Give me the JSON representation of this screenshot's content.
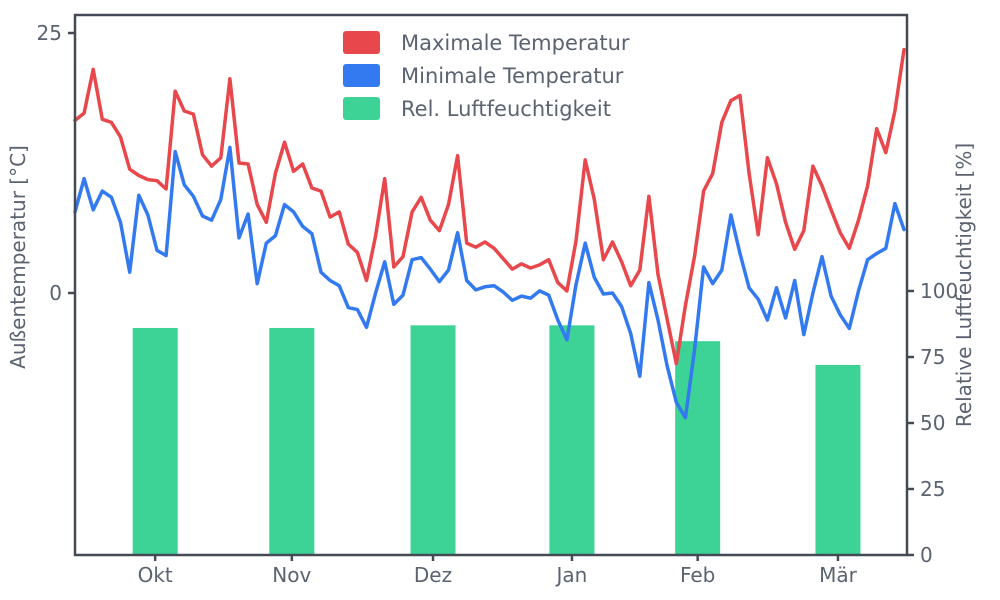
{
  "chart_data": {
    "type": "mixed",
    "title": "",
    "x_axis": {
      "unit": "day",
      "span_days": 182,
      "month_ticks": [
        {
          "label": "Okt",
          "day": 17.6
        },
        {
          "label": "Nov",
          "day": 47.6
        },
        {
          "label": "Dez",
          "day": 78.6
        },
        {
          "label": "Jan",
          "day": 109.1
        },
        {
          "label": "Feb",
          "day": 136.7
        },
        {
          "label": "Mär",
          "day": 167.5
        }
      ]
    },
    "y_left": {
      "label": "Außentemperatur [°C]",
      "ticks": [
        25,
        0
      ],
      "min": -25.2,
      "max": 26.7
    },
    "y_right": {
      "label": "Relative Luftfeuchtigkeit [%]",
      "ticks": [
        100,
        75,
        50,
        25,
        0
      ],
      "min": 0,
      "max": 204
    },
    "legend": [
      {
        "label": "Maximale Temperatur",
        "color": "#e8474b"
      },
      {
        "label": "Minimale Temperatur",
        "color": "#337af0"
      },
      {
        "label": "Rel. Luftfeuchtigkeit",
        "color": "#3dd396"
      }
    ],
    "series": [
      {
        "name": "Maximale Temperatur",
        "type": "line",
        "axis": "left",
        "color": "#e8474b",
        "day_start": 0,
        "day_step": 2,
        "values": [
          16.6,
          17.3,
          21.5,
          16.7,
          16.4,
          15.0,
          11.9,
          11.3,
          10.9,
          10.8,
          10.0,
          19.4,
          17.5,
          17.2,
          13.3,
          12.2,
          13.0,
          20.6,
          12.5,
          12.4,
          8.5,
          6.8,
          11.5,
          14.5,
          11.7,
          12.4,
          10.1,
          9.8,
          7.3,
          7.8,
          4.7,
          3.9,
          1.2,
          5.5,
          11.0,
          2.5,
          3.5,
          7.8,
          9.2,
          7.0,
          6.0,
          8.5,
          13.2,
          4.8,
          4.4,
          4.9,
          4.3,
          3.3,
          2.3,
          2.8,
          2.4,
          2.7,
          3.2,
          1.0,
          0.2,
          5.0,
          12.8,
          9.0,
          3.2,
          4.9,
          3.0,
          0.7,
          2.2,
          9.3,
          1.8,
          -2.5,
          -6.8,
          -1.2,
          3.5,
          9.8,
          11.5,
          16.4,
          18.5,
          19.0,
          11.5,
          5.6,
          13.0,
          10.5,
          6.8,
          4.2,
          6.0,
          12.2,
          10.3,
          8.0,
          5.8,
          4.3,
          7.0,
          10.3,
          15.8,
          13.5,
          17.5,
          23.4
        ]
      },
      {
        "name": "Minimale Temperatur",
        "type": "line",
        "axis": "left",
        "color": "#337af0",
        "day_start": 0,
        "day_step": 2,
        "values": [
          7.8,
          11.0,
          8.0,
          9.8,
          9.2,
          6.8,
          2.0,
          9.4,
          7.5,
          4.1,
          3.6,
          13.6,
          10.4,
          9.3,
          7.4,
          7.0,
          9.0,
          14.0,
          5.3,
          7.6,
          0.9,
          4.8,
          5.5,
          8.5,
          7.8,
          6.4,
          5.7,
          2.0,
          1.2,
          0.7,
          -1.4,
          -1.6,
          -3.3,
          0.0,
          3.0,
          -1.1,
          -0.2,
          3.2,
          3.4,
          2.3,
          1.1,
          2.2,
          5.8,
          1.2,
          0.3,
          0.6,
          0.7,
          0.1,
          -0.7,
          -0.3,
          -0.5,
          0.2,
          -0.2,
          -2.6,
          -4.5,
          0.8,
          4.8,
          1.5,
          -0.1,
          0.0,
          -1.3,
          -3.9,
          -8.0,
          1.0,
          -2.6,
          -7.0,
          -10.5,
          -12.0,
          -5.5,
          2.5,
          0.9,
          2.2,
          7.5,
          3.8,
          0.5,
          -0.6,
          -2.6,
          0.5,
          -2.4,
          1.2,
          -4.0,
          0.0,
          3.5,
          -0.3,
          -2.1,
          -3.4,
          0.2,
          3.2,
          3.8,
          4.3,
          8.6,
          6.1
        ]
      },
      {
        "name": "Rel. Luftfeuchtigkeit",
        "type": "bar",
        "axis": "right",
        "color": "#3dd396",
        "categories": [
          "Okt",
          "Nov",
          "Dez",
          "Jan",
          "Feb",
          "Mär"
        ],
        "values": [
          86,
          86,
          87,
          87,
          81,
          72
        ]
      }
    ],
    "styles": {
      "text_color": "#5c6370",
      "spine_color": "#444a54",
      "background": "#ffffff"
    }
  }
}
